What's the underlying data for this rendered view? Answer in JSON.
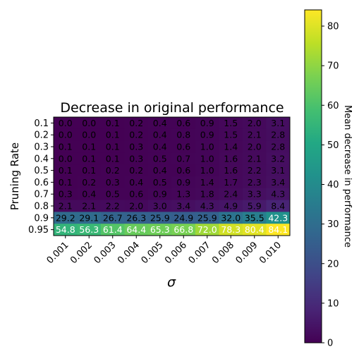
{
  "chart_data": {
    "type": "heatmap",
    "title": "Decrease in original performance",
    "xlabel": "σ",
    "ylabel": "Pruning Rate",
    "x_categories": [
      "0.001",
      "0.002",
      "0.003",
      "0.004",
      "0.005",
      "0.006",
      "0.007",
      "0.008",
      "0.009",
      "0.010"
    ],
    "y_categories": [
      "0.1",
      "0.2",
      "0.3",
      "0.4",
      "0.5",
      "0.6",
      "0.7",
      "0.8",
      "0.9",
      "0.95"
    ],
    "values": [
      [
        0.0,
        0.0,
        0.1,
        0.2,
        0.4,
        0.6,
        0.9,
        1.5,
        2.0,
        3.1
      ],
      [
        0.0,
        0.0,
        0.1,
        0.2,
        0.4,
        0.8,
        0.9,
        1.5,
        2.1,
        2.8
      ],
      [
        0.1,
        0.1,
        0.1,
        0.3,
        0.4,
        0.6,
        1.0,
        1.4,
        2.0,
        2.8
      ],
      [
        0.0,
        0.1,
        0.1,
        0.3,
        0.5,
        0.7,
        1.0,
        1.6,
        2.1,
        3.2
      ],
      [
        0.1,
        0.1,
        0.2,
        0.2,
        0.4,
        0.6,
        1.0,
        1.6,
        2.2,
        3.1
      ],
      [
        0.1,
        0.2,
        0.3,
        0.4,
        0.5,
        0.9,
        1.4,
        1.7,
        2.3,
        3.4
      ],
      [
        0.3,
        0.4,
        0.5,
        0.6,
        0.9,
        1.3,
        1.8,
        2.4,
        3.3,
        4.3
      ],
      [
        2.1,
        2.1,
        2.2,
        2.0,
        3.0,
        3.4,
        4.3,
        4.9,
        5.9,
        8.4
      ],
      [
        29.2,
        29.1,
        26.7,
        26.3,
        25.9,
        24.9,
        25.9,
        32.0,
        35.5,
        42.3
      ],
      [
        54.8,
        56.3,
        61.4,
        64.4,
        65.3,
        66.8,
        72.0,
        78.3,
        80.4,
        84.1
      ]
    ],
    "colorbar": {
      "label": "Mean decrease in performance",
      "min": 0,
      "max": 84.1,
      "ticks": [
        "0",
        "10",
        "20",
        "30",
        "40",
        "50",
        "60",
        "70",
        "80"
      ]
    },
    "colormap": "viridis"
  }
}
